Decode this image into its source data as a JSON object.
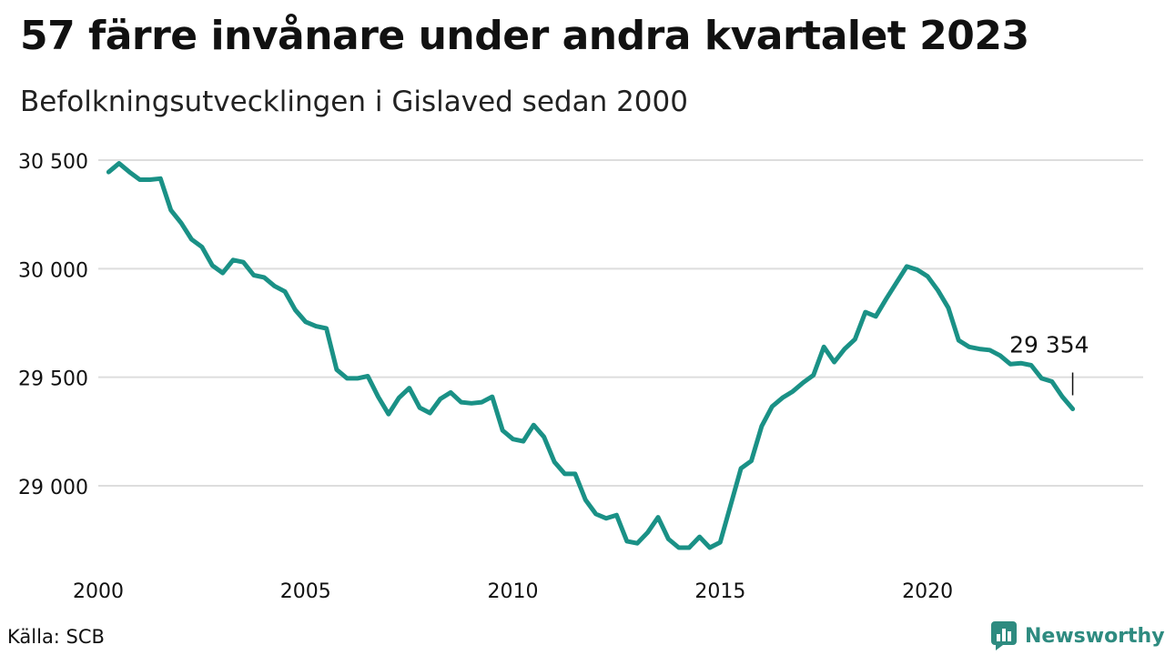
{
  "title": "57 färre invånare under andra kvartalet 2023",
  "subtitle": "Befolkningsutvecklingen i Gislaved sedan 2000",
  "source": "Källa: SCB",
  "brand": "Newsworthy",
  "colors": {
    "line": "#1a9186",
    "grid": "#dddddd",
    "brand": "#2e8b80"
  },
  "chart_data": {
    "type": "line",
    "title": "57 färre invånare under andra kvartalet 2023",
    "subtitle": "Befolkningsutvecklingen i Gislaved sedan 2000",
    "xlabel": "",
    "ylabel": "",
    "ylim": [
      28650,
      30580
    ],
    "xlim": [
      2000,
      2025.2
    ],
    "y_ticks": [
      29000,
      29500,
      30000,
      30500
    ],
    "y_tick_labels": [
      "29 000",
      "29 500",
      "30 000",
      "30 500"
    ],
    "x_ticks": [
      2000,
      2005,
      2010,
      2015,
      2020
    ],
    "x_tick_labels": [
      "2000",
      "2005",
      "2010",
      "2015",
      "2020"
    ],
    "grid": "horizontal",
    "series": [
      {
        "x": [
          2000.25,
          2000.5,
          2000.75,
          2001,
          2001.25,
          2001.5,
          2001.75,
          2002,
          2002.25,
          2002.5,
          2002.75,
          2003,
          2003.25,
          2003.5,
          2003.75,
          2004,
          2004.25,
          2004.5,
          2004.75,
          2005,
          2005.25,
          2005.5,
          2005.75,
          2006,
          2006.25,
          2006.5,
          2006.75,
          2007,
          2007.25,
          2007.5,
          2007.75,
          2008,
          2008.25,
          2008.5,
          2008.75,
          2009,
          2009.25,
          2009.5,
          2009.75,
          2010,
          2010.25,
          2010.5,
          2010.75,
          2011,
          2011.25,
          2011.5,
          2011.75,
          2012,
          2012.25,
          2012.5,
          2012.75,
          2013,
          2013.25,
          2013.5,
          2013.75,
          2014,
          2014.25,
          2014.5,
          2014.75,
          2015,
          2015.25,
          2015.5,
          2015.75,
          2016,
          2016.25,
          2016.5,
          2016.75,
          2017,
          2017.25,
          2017.5,
          2017.75,
          2018,
          2018.25,
          2018.5,
          2018.75,
          2019,
          2019.25,
          2019.5,
          2019.75,
          2020,
          2020.25,
          2020.5,
          2020.75,
          2021,
          2021.25,
          2021.5,
          2021.75,
          2022,
          2022.25,
          2022.5,
          2022.75,
          2023,
          2023.25,
          2023.5
        ],
        "values": [
          30445,
          30485,
          30445,
          30410,
          30410,
          30415,
          30270,
          30210,
          30135,
          30100,
          30015,
          29980,
          30040,
          30030,
          29970,
          29960,
          29920,
          29895,
          29810,
          29755,
          29735,
          29725,
          29535,
          29495,
          29495,
          29505,
          29410,
          29330,
          29405,
          29450,
          29360,
          29335,
          29400,
          29430,
          29385,
          29380,
          29385,
          29410,
          29255,
          29215,
          29205,
          29280,
          29225,
          29110,
          29055,
          29055,
          28935,
          28870,
          28850,
          28865,
          28745,
          28735,
          28785,
          28855,
          28755,
          28715,
          28715,
          28765,
          28715,
          28740,
          28910,
          29080,
          29115,
          29275,
          29365,
          29405,
          29435,
          29475,
          29510,
          29640,
          29570,
          29630,
          29675,
          29800,
          29780,
          29860,
          29935,
          30010,
          29995,
          29965,
          29900,
          29820,
          29670,
          29640,
          29630,
          29625,
          29600,
          29560,
          29565,
          29555,
          29495,
          29480,
          29410,
          29354
        ]
      }
    ],
    "annotations": [
      {
        "x": 2023.5,
        "y": 29354,
        "text": "29 354"
      }
    ]
  }
}
